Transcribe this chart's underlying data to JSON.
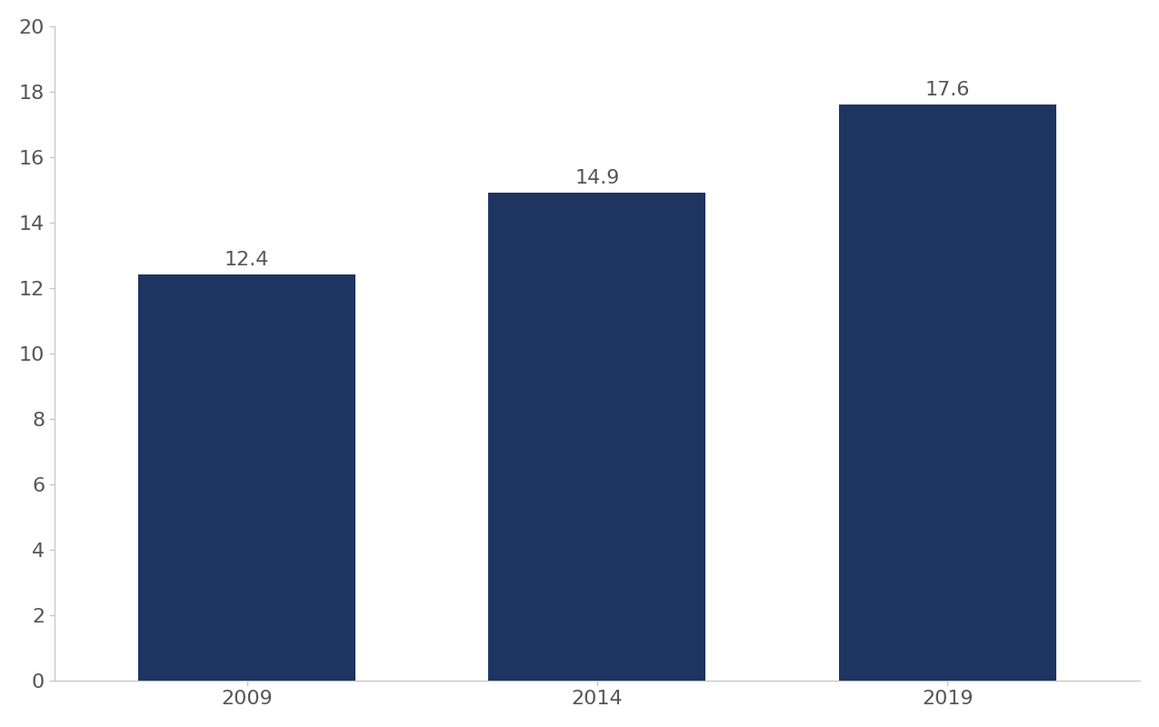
{
  "categories": [
    "2009",
    "2014",
    "2019"
  ],
  "values": [
    12.4,
    14.9,
    17.6
  ],
  "bar_color": "#1e3461",
  "bar_width": 0.62,
  "ylim": [
    0,
    20
  ],
  "yticks": [
    0,
    2,
    4,
    6,
    8,
    10,
    12,
    14,
    16,
    18,
    20
  ],
  "tick_fontsize": 16,
  "value_label_fontsize": 16,
  "background_color": "#ffffff",
  "spine_color": "#c8c8c8",
  "tick_color": "#c8c8c8",
  "label_color": "#555555"
}
